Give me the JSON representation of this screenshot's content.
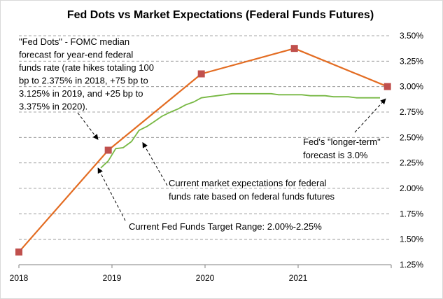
{
  "chart_data": {
    "type": "line",
    "title": "Fed Dots vs Market Expectations (Federal Funds Futures)",
    "x_ticks": [
      "2018",
      "2019",
      "2020",
      "2021"
    ],
    "y_ticks": [
      "1.25%",
      "1.50%",
      "1.75%",
      "2.00%",
      "2.25%",
      "2.50%",
      "2.75%",
      "3.00%",
      "3.25%",
      "3.50%"
    ],
    "xlim": [
      2018.0,
      2022.0
    ],
    "ylim": [
      1.25,
      3.5
    ],
    "grid": "horizontal dashed",
    "series": [
      {
        "key": "fed-dots",
        "color": "#e36c22",
        "marker_color": "#c0504d",
        "x": [
          2018.0,
          2018.96,
          2019.96,
          2020.96,
          2021.96
        ],
        "y": [
          1.375,
          2.375,
          3.125,
          3.375,
          3.0
        ]
      },
      {
        "key": "market-expectations",
        "color": "#77b843",
        "x": [
          2018.88,
          2018.96,
          2019.04,
          2019.12,
          2019.21,
          2019.29,
          2019.38,
          2019.46,
          2019.54,
          2019.63,
          2019.71,
          2019.79,
          2019.88,
          2019.96,
          2020.04,
          2020.13,
          2020.21,
          2020.29,
          2020.38,
          2020.46,
          2020.54,
          2020.63,
          2020.71,
          2020.79,
          2020.88,
          2020.96,
          2021.04,
          2021.13,
          2021.21,
          2021.29,
          2021.38,
          2021.46,
          2021.54,
          2021.63,
          2021.71,
          2021.79,
          2021.88
        ],
        "y": [
          2.2,
          2.27,
          2.39,
          2.4,
          2.46,
          2.57,
          2.61,
          2.66,
          2.71,
          2.75,
          2.78,
          2.82,
          2.85,
          2.89,
          2.9,
          2.91,
          2.92,
          2.93,
          2.93,
          2.93,
          2.93,
          2.93,
          2.93,
          2.92,
          2.92,
          2.92,
          2.92,
          2.91,
          2.91,
          2.91,
          2.9,
          2.9,
          2.9,
          2.89,
          2.89,
          2.89,
          2.89
        ]
      }
    ],
    "annotations": [
      {
        "key": "fed-dots-note",
        "lines": [
          "\"Fed Dots\" - FOMC median",
          "forecast for year-end federal",
          "funds rate (rate hikes totaling 100",
          "bp to 2.375% in 2018, +75 bp to",
          "3.125% in 2019, and +25 bp to",
          "3.375% in 2020)."
        ],
        "arrow_to": [
          2018.85,
          2.48
        ]
      },
      {
        "key": "market-note",
        "lines": [
          "Current market expectations for federal",
          "funds rate based on federal funds futures"
        ],
        "arrow_to": [
          2019.33,
          2.45
        ]
      },
      {
        "key": "target-range-note",
        "lines": [
          "Current Fed Funds Target Range: 2.00%-2.25%"
        ],
        "arrow_to": [
          2018.85,
          2.2
        ]
      },
      {
        "key": "longer-term-note",
        "lines": [
          "Fed's \"longer-term\"",
          "forecast is 3.0%"
        ],
        "arrow_to": [
          2021.94,
          2.88
        ]
      }
    ]
  }
}
